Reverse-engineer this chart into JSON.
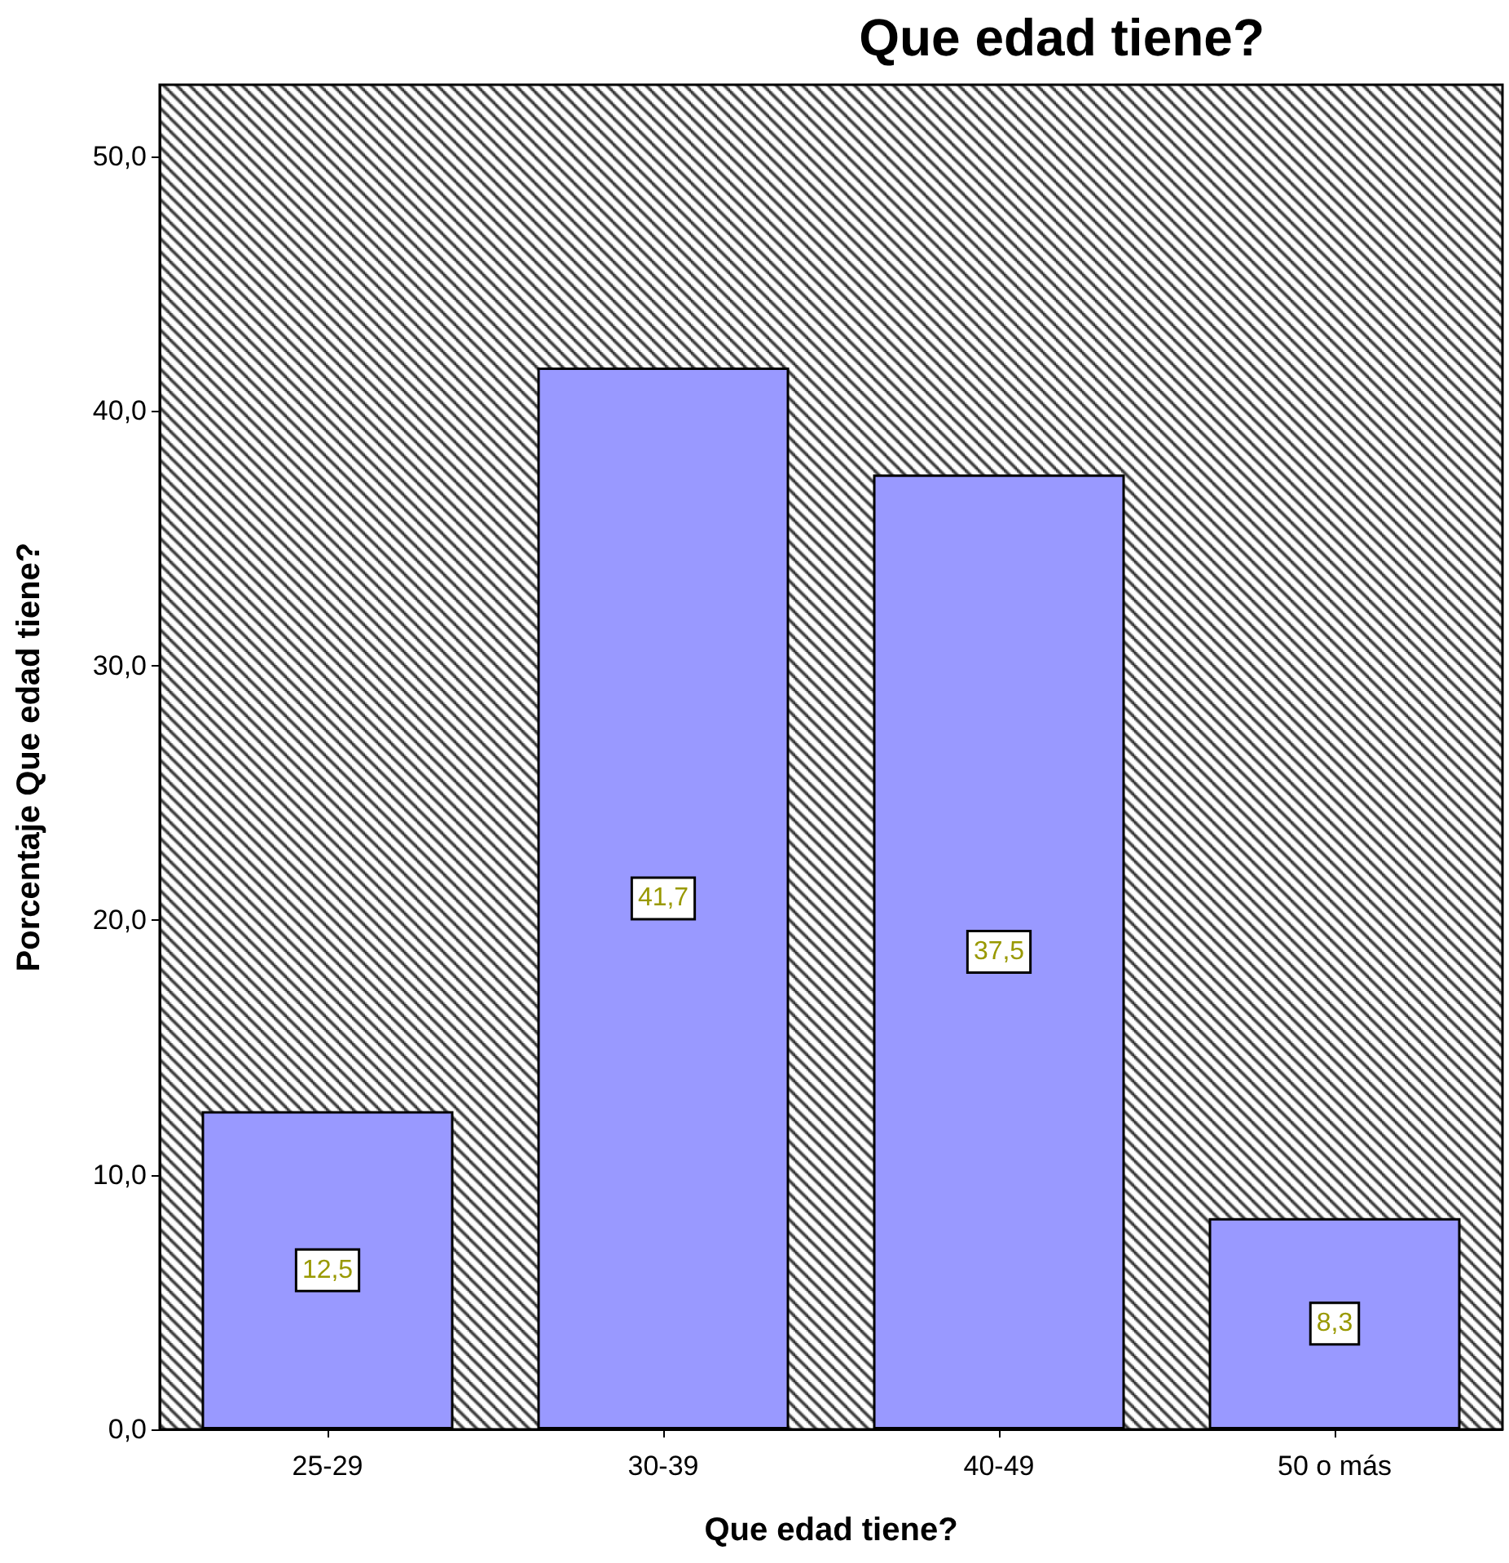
{
  "chart_data": {
    "type": "bar",
    "title": "Que edad tiene?",
    "xlabel": "Que edad tiene?",
    "ylabel": "Porcentaje Que edad tiene?",
    "categories": [
      "25-29",
      "30-39",
      "40-49",
      "50 o más"
    ],
    "values": [
      12.5,
      41.7,
      37.5,
      8.3
    ],
    "color": "#9999ff",
    "value_labels": [
      "12,5",
      "41,7",
      "37,5",
      "8,3"
    ],
    "ylim": [
      0,
      52.8
    ],
    "yticks": [
      {
        "value": 0,
        "label": "0,0"
      },
      {
        "value": 10,
        "label": "10,0"
      },
      {
        "value": 20,
        "label": "20,0"
      },
      {
        "value": 30,
        "label": "30,0"
      },
      {
        "value": 40,
        "label": "40,0"
      },
      {
        "value": 50,
        "label": "50,0"
      }
    ],
    "grid": false
  }
}
